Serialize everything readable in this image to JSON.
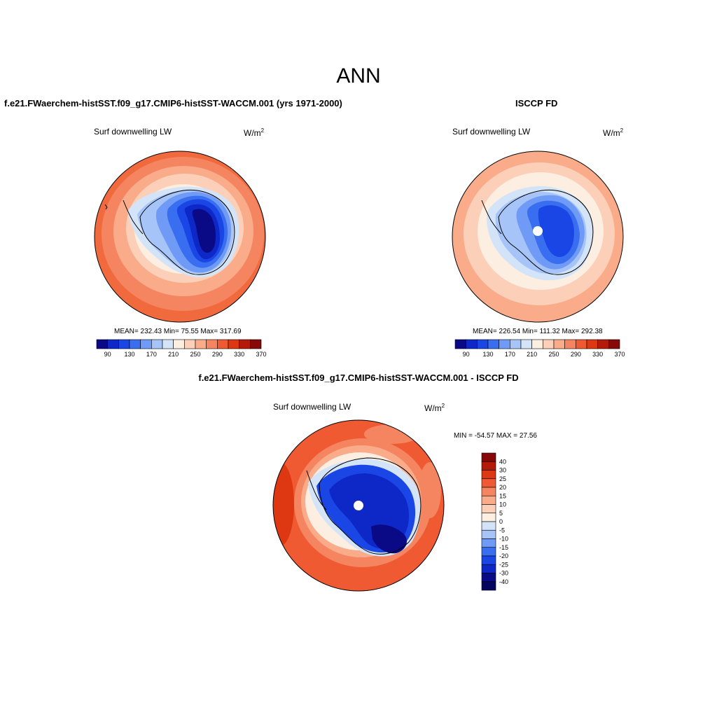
{
  "page": {
    "season_title": "ANN"
  },
  "panels": {
    "model": {
      "title": "f.e21.FWaerchem-histSST.f09_g17.CMIP6-histSST-WACCM.001 (yrs 1971-2000)",
      "variable_label": "Surf downwelling LW",
      "units": "W/m",
      "units_sup": "2",
      "stats": "MEAN= 232.43  Min=  75.55  Max= 317.69"
    },
    "obs": {
      "title": "ISCCP FD",
      "variable_label": "Surf downwelling LW",
      "units": "W/m",
      "units_sup": "2",
      "stats": "MEAN= 226.54  Min= 111.32  Max= 292.38"
    },
    "diff": {
      "title": "f.e21.FWaerchem-histSST.f09_g17.CMIP6-histSST-WACCM.001 - ISCCP FD",
      "variable_label": "Surf downwelling LW",
      "units": "W/m",
      "units_sup": "2",
      "stats": "MIN = -54.57 MAX =  27.56"
    }
  },
  "chart_data": [
    {
      "type": "heatmap",
      "projection": "south-polar-stereographic",
      "panel": "model",
      "colorbar": {
        "orientation": "horizontal",
        "tick_labels": [
          "90",
          "130",
          "170",
          "210",
          "250",
          "290",
          "330",
          "370"
        ],
        "colors": [
          "#0a0a87",
          "#0d28c7",
          "#1a46e6",
          "#3a6ef0",
          "#6f9af5",
          "#a6c4f7",
          "#d4e4f8",
          "#fdeee2",
          "#fcd0b8",
          "#f9ab8a",
          "#f58560",
          "#ef5a32",
          "#dd3812",
          "#b41a08",
          "#870808"
        ]
      },
      "mean": 232.43,
      "min": 75.55,
      "max": 317.69
    },
    {
      "type": "heatmap",
      "projection": "south-polar-stereographic",
      "panel": "obs",
      "colorbar": {
        "orientation": "horizontal",
        "tick_labels": [
          "90",
          "130",
          "170",
          "210",
          "250",
          "290",
          "330",
          "370"
        ],
        "colors": [
          "#0a0a87",
          "#0d28c7",
          "#1a46e6",
          "#3a6ef0",
          "#6f9af5",
          "#a6c4f7",
          "#d4e4f8",
          "#fdeee2",
          "#fcd0b8",
          "#f9ab8a",
          "#f58560",
          "#ef5a32",
          "#dd3812",
          "#b41a08",
          "#870808"
        ]
      },
      "mean": 226.54,
      "min": 111.32,
      "max": 292.38
    },
    {
      "type": "heatmap",
      "projection": "south-polar-stereographic",
      "panel": "diff",
      "colorbar": {
        "orientation": "vertical",
        "tick_labels": [
          "40",
          "30",
          "25",
          "20",
          "15",
          "10",
          "5",
          "0",
          "-5",
          "-10",
          "-15",
          "-20",
          "-25",
          "-30",
          "-40"
        ],
        "colors": [
          "#870808",
          "#b41a08",
          "#dd3812",
          "#ef5a32",
          "#f58560",
          "#f9ab8a",
          "#fcd0b8",
          "#fdeee2",
          "#d4e4f8",
          "#a6c4f7",
          "#6f9af5",
          "#3a6ef0",
          "#1a46e6",
          "#0d28c7",
          "#0a0a87",
          "#050560"
        ]
      },
      "min": -54.57,
      "max": 27.56
    }
  ]
}
